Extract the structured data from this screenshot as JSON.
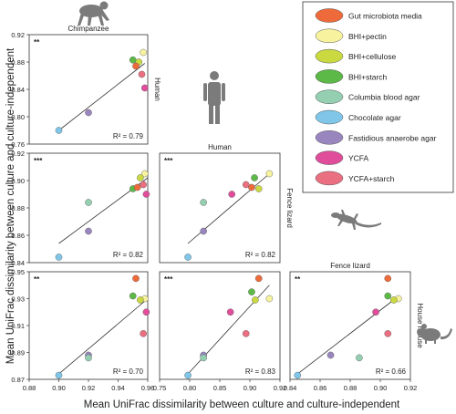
{
  "figure": {
    "xlabel": "Mean UniFrac dissimilarity between culture and culture-independent",
    "ylabel": "Mean UniFrac dissimilarity between culture and culture-independent",
    "icon_names": [
      "chimpanzee-icon",
      "human-icon",
      "fence-lizard-icon",
      "house-mouse-icon"
    ]
  },
  "legend": {
    "placement": "top-right",
    "items": [
      {
        "label": "Gut microbiota media",
        "color": "#ee6a3b"
      },
      {
        "label": "BHI+pectin",
        "color": "#f6f29e"
      },
      {
        "label": "BHI+cellulose",
        "color": "#c9d93f"
      },
      {
        "label": "BHI+starch",
        "color": "#5cb947"
      },
      {
        "label": "Columbia blood agar",
        "color": "#95cfb2"
      },
      {
        "label": "Chocolate agar",
        "color": "#7fc6e8"
      },
      {
        "label": "Fastidious anaerobe agar",
        "color": "#9a86bf"
      },
      {
        "label": "YCFA",
        "color": "#e04e9b"
      },
      {
        "label": "YCFA+starch",
        "color": "#ea6f80"
      }
    ]
  },
  "chart_data": [
    {
      "type": "scatter",
      "title": "Chimpanzee",
      "ylabel": "Human",
      "significance": "**",
      "r2_label": "R² = 0.79",
      "xlim": [
        0.88,
        0.96
      ],
      "ylim": [
        0.76,
        0.92
      ],
      "xticks": [],
      "yticks": [
        "0.76",
        "0.80",
        "0.84",
        "0.88",
        "0.92"
      ],
      "fit": [
        [
          0.9,
          0.78
        ],
        [
          0.958,
          0.878
        ]
      ],
      "points": [
        {
          "series": "Chocolate agar",
          "x": 0.9,
          "y": 0.78
        },
        {
          "series": "Fastidious anaerobe agar",
          "x": 0.92,
          "y": 0.806
        },
        {
          "series": "BHI+pectin",
          "x": 0.957,
          "y": 0.894
        },
        {
          "series": "BHI+starch",
          "x": 0.95,
          "y": 0.883
        },
        {
          "series": "BHI+cellulose",
          "x": 0.954,
          "y": 0.88
        },
        {
          "series": "Gut microbiota media",
          "x": 0.952,
          "y": 0.874
        },
        {
          "series": "YCFA+starch",
          "x": 0.956,
          "y": 0.862
        },
        {
          "series": "YCFA",
          "x": 0.958,
          "y": 0.842
        }
      ]
    },
    {
      "type": "scatter",
      "title": "",
      "ylabel": "",
      "significance": "***",
      "r2_label": "R² = 0.82",
      "xlim": [
        0.88,
        0.96
      ],
      "ylim": [
        0.84,
        0.92
      ],
      "xticks": [],
      "yticks": [
        "0.84",
        "0.86",
        "0.88",
        "0.90",
        "0.92"
      ],
      "fit": [
        [
          0.9,
          0.854
        ],
        [
          0.96,
          0.902
        ]
      ],
      "points": [
        {
          "series": "Chocolate agar",
          "x": 0.9,
          "y": 0.844
        },
        {
          "series": "Fastidious anaerobe agar",
          "x": 0.92,
          "y": 0.863
        },
        {
          "series": "Columbia blood agar",
          "x": 0.92,
          "y": 0.884
        },
        {
          "series": "BHI+pectin",
          "x": 0.958,
          "y": 0.905
        },
        {
          "series": "BHI+cellulose",
          "x": 0.955,
          "y": 0.902
        },
        {
          "series": "YCFA+starch",
          "x": 0.957,
          "y": 0.897
        },
        {
          "series": "BHI+starch",
          "x": 0.95,
          "y": 0.894
        },
        {
          "series": "Gut microbiota media",
          "x": 0.953,
          "y": 0.895
        },
        {
          "series": "YCFA",
          "x": 0.959,
          "y": 0.89
        }
      ]
    },
    {
      "type": "scatter",
      "title": "Human",
      "ylabel": "Fence lizard",
      "significance": "***",
      "r2_label": "R² = 0.82",
      "xlim": [
        0.75,
        0.92
      ],
      "ylim": [
        0.84,
        0.92
      ],
      "xticks": [],
      "yticks": [],
      "fit": [
        [
          0.79,
          0.854
        ],
        [
          0.905,
          0.905
        ]
      ],
      "points": [
        {
          "series": "Chocolate agar",
          "x": 0.79,
          "y": 0.844
        },
        {
          "series": "Fastidious anaerobe agar",
          "x": 0.812,
          "y": 0.863
        },
        {
          "series": "Columbia blood agar",
          "x": 0.812,
          "y": 0.884
        },
        {
          "series": "BHI+pectin",
          "x": 0.905,
          "y": 0.905
        },
        {
          "series": "BHI+starch",
          "x": 0.884,
          "y": 0.902
        },
        {
          "series": "YCFA+starch",
          "x": 0.872,
          "y": 0.897
        },
        {
          "series": "Gut microbiota media",
          "x": 0.88,
          "y": 0.895
        },
        {
          "series": "BHI+cellulose",
          "x": 0.89,
          "y": 0.894
        },
        {
          "series": "YCFA",
          "x": 0.852,
          "y": 0.89
        }
      ]
    },
    {
      "type": "scatter",
      "title": "",
      "ylabel": "",
      "significance": "**",
      "r2_label": "R² = 0.70",
      "xlim": [
        0.88,
        0.96
      ],
      "ylim": [
        0.87,
        0.95
      ],
      "xticks": [
        "0.88",
        "0.90",
        "0.92",
        "0.94",
        "0.96"
      ],
      "yticks": [
        "0.87",
        "0.89",
        "0.91",
        "0.93",
        "0.95"
      ],
      "fit": [
        [
          0.9,
          0.874
        ],
        [
          0.96,
          0.93
        ]
      ],
      "points": [
        {
          "series": "Chocolate agar",
          "x": 0.9,
          "y": 0.873
        },
        {
          "series": "Fastidious anaerobe agar",
          "x": 0.92,
          "y": 0.888
        },
        {
          "series": "Columbia blood agar",
          "x": 0.92,
          "y": 0.886
        },
        {
          "series": "Gut microbiota media",
          "x": 0.952,
          "y": 0.945
        },
        {
          "series": "BHI+starch",
          "x": 0.95,
          "y": 0.932
        },
        {
          "series": "BHI+pectin",
          "x": 0.958,
          "y": 0.93
        },
        {
          "series": "BHI+cellulose",
          "x": 0.955,
          "y": 0.929
        },
        {
          "series": "YCFA",
          "x": 0.959,
          "y": 0.92
        },
        {
          "series": "YCFA+starch",
          "x": 0.957,
          "y": 0.904
        }
      ]
    },
    {
      "type": "scatter",
      "title": "",
      "ylabel": "",
      "significance": "***",
      "r2_label": "R² = 0.83",
      "xlim": [
        0.75,
        0.92
      ],
      "ylim": [
        0.87,
        0.95
      ],
      "xticks": [
        "0.75",
        "0.80",
        "0.85",
        "0.90",
        "0.92"
      ],
      "yticks": [],
      "fit": [
        [
          0.79,
          0.874
        ],
        [
          0.905,
          0.94
        ]
      ],
      "points": [
        {
          "series": "Chocolate agar",
          "x": 0.79,
          "y": 0.873
        },
        {
          "series": "Fastidious anaerobe agar",
          "x": 0.812,
          "y": 0.888
        },
        {
          "series": "Columbia blood agar",
          "x": 0.812,
          "y": 0.886
        },
        {
          "series": "Gut microbiota media",
          "x": 0.89,
          "y": 0.945
        },
        {
          "series": "BHI+starch",
          "x": 0.88,
          "y": 0.935
        },
        {
          "series": "BHI+cellulose",
          "x": 0.885,
          "y": 0.929
        },
        {
          "series": "BHI+pectin",
          "x": 0.905,
          "y": 0.93
        },
        {
          "series": "YCFA",
          "x": 0.85,
          "y": 0.92
        },
        {
          "series": "YCFA+starch",
          "x": 0.872,
          "y": 0.904
        }
      ]
    },
    {
      "type": "scatter",
      "title": "Fence lizard",
      "ylabel": "House mouse",
      "significance": "**",
      "r2_label": "R² = 0.66",
      "xlim": [
        0.84,
        0.92
      ],
      "ylim": [
        0.87,
        0.95
      ],
      "xticks": [
        "0.84",
        "0.86",
        "0.88",
        "0.90",
        "0.92"
      ],
      "yticks": [],
      "fit": [
        [
          0.845,
          0.874
        ],
        [
          0.91,
          0.93
        ]
      ],
      "points": [
        {
          "series": "Chocolate agar",
          "x": 0.845,
          "y": 0.873
        },
        {
          "series": "Fastidious anaerobe agar",
          "x": 0.867,
          "y": 0.888
        },
        {
          "series": "Columbia blood agar",
          "x": 0.886,
          "y": 0.886
        },
        {
          "series": "Gut microbiota media",
          "x": 0.905,
          "y": 0.945
        },
        {
          "series": "BHI+starch",
          "x": 0.905,
          "y": 0.932
        },
        {
          "series": "BHI+pectin",
          "x": 0.912,
          "y": 0.93
        },
        {
          "series": "BHI+cellulose",
          "x": 0.909,
          "y": 0.929
        },
        {
          "series": "YCFA",
          "x": 0.897,
          "y": 0.92
        },
        {
          "series": "YCFA+starch",
          "x": 0.905,
          "y": 0.904
        }
      ]
    }
  ]
}
